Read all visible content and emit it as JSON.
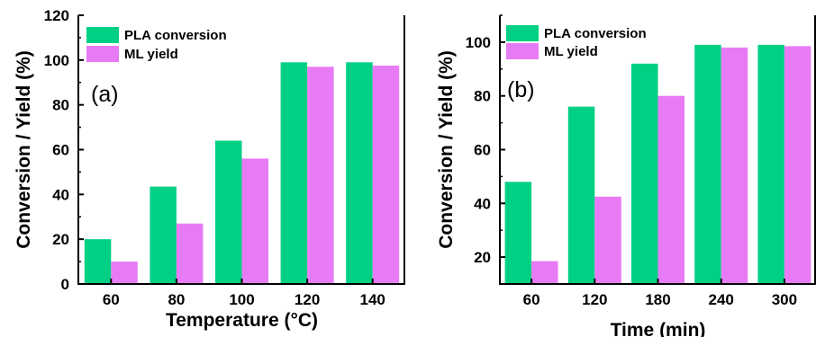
{
  "chart_data": [
    {
      "type": "bar",
      "panel_label": "(a)",
      "categories": [
        "60",
        "80",
        "100",
        "120",
        "140"
      ],
      "series": [
        {
          "name": "PLA conversion",
          "color": "#00d084",
          "values": [
            20,
            43.5,
            64,
            99,
            99
          ]
        },
        {
          "name": "ML yield",
          "color": "#e77bf5",
          "values": [
            10,
            27,
            56,
            97,
            97.5
          ]
        }
      ],
      "xlabel": "Temperature (°C)",
      "ylabel": "Conversion / Yield (%)",
      "ylim": [
        0,
        120
      ],
      "yticks": [
        "0",
        "20",
        "40",
        "60",
        "80",
        "100",
        "120"
      ],
      "legend": "top-left",
      "grid": false
    },
    {
      "type": "bar",
      "panel_label": "(b)",
      "categories": [
        "60",
        "120",
        "180",
        "240",
        "300"
      ],
      "series": [
        {
          "name": "PLA conversion",
          "color": "#00d084",
          "values": [
            48,
            76,
            92,
            99,
            99
          ]
        },
        {
          "name": "ML yield",
          "color": "#e77bf5",
          "values": [
            18.5,
            42.5,
            80,
            98,
            98.5
          ]
        }
      ],
      "xlabel": "Time (min)",
      "ylabel": "Conversion / Yield (%)",
      "ylim": [
        10,
        110
      ],
      "yticks": [
        "20",
        "40",
        "60",
        "80",
        "100"
      ],
      "legend": "top-left",
      "grid": false
    }
  ]
}
